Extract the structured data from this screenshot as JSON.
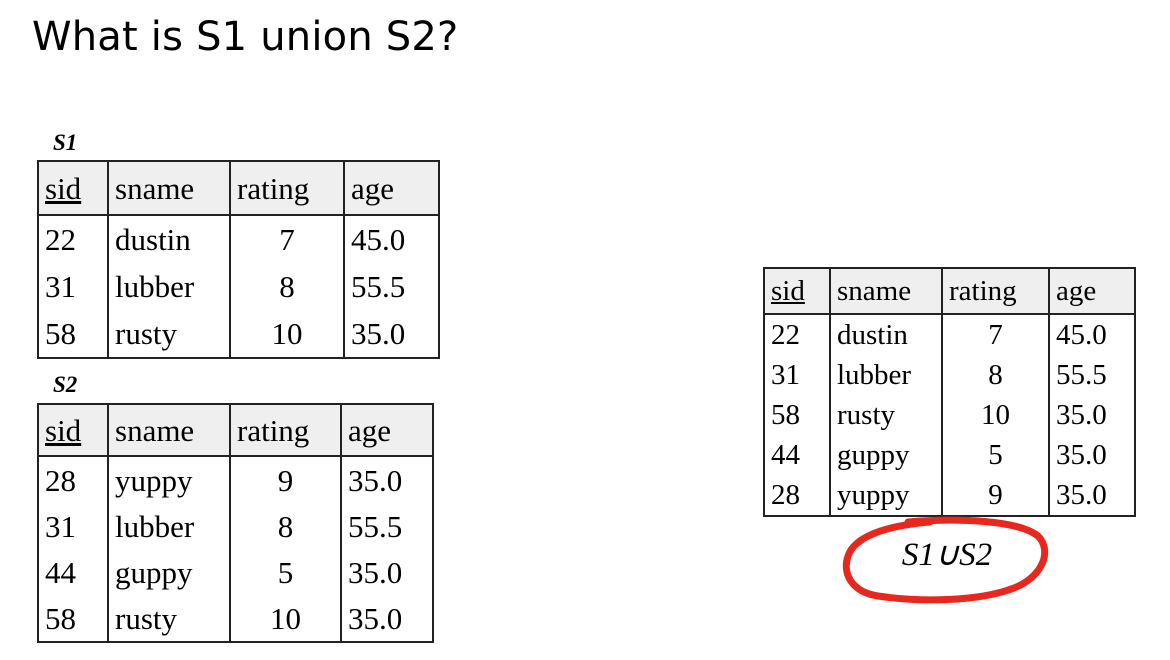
{
  "title": "What is S1 union S2?",
  "s1": {
    "label": "S1",
    "headers": [
      "sid",
      "sname",
      "rating",
      "age"
    ],
    "rows": [
      [
        "22",
        "dustin",
        "7",
        "45.0"
      ],
      [
        "31",
        "lubber",
        "8",
        "55.5"
      ],
      [
        "58",
        "rusty",
        "10",
        "35.0"
      ]
    ]
  },
  "s2": {
    "label": "S2",
    "headers": [
      "sid",
      "sname",
      "rating",
      "age"
    ],
    "rows": [
      [
        "28",
        "yuppy",
        "9",
        "35.0"
      ],
      [
        "31",
        "lubber",
        "8",
        "55.5"
      ],
      [
        "44",
        "guppy",
        "5",
        "35.0"
      ],
      [
        "58",
        "rusty",
        "10",
        "35.0"
      ]
    ]
  },
  "union": {
    "label": "S1∪S2",
    "headers": [
      "sid",
      "sname",
      "rating",
      "age"
    ],
    "rows": [
      [
        "22",
        "dustin",
        "7",
        "45.0"
      ],
      [
        "31",
        "lubber",
        "8",
        "55.5"
      ],
      [
        "58",
        "rusty",
        "10",
        "35.0"
      ],
      [
        "44",
        "guppy",
        "5",
        "35.0"
      ],
      [
        "28",
        "yuppy",
        "9",
        "35.0"
      ]
    ]
  },
  "annotation": {
    "color": "#e8281e",
    "shape": "hand-drawn-ellipse"
  }
}
